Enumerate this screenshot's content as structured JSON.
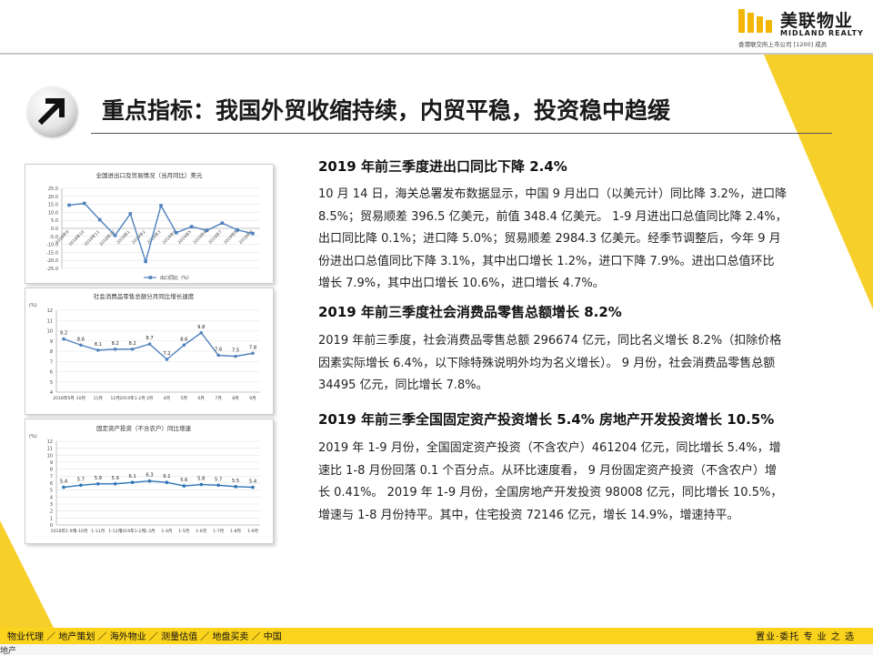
{
  "brand": {
    "name_cn": "美联物业",
    "name_en": "MIDLAND REALTY",
    "subtitle": "香港联交所上市公司 [1200] 成员"
  },
  "slide": {
    "title": "重点指标：我国外贸收缩持续，内贸平稳，投资稳中趋缓"
  },
  "sections": [
    {
      "heading": "2019 年前三季度进出口同比下降 2.4%",
      "lines": [
        "10 月 14 日，海关总署发布数据显示，中国 9 月出口（以美元计）同比降 3.2%，进口降",
        "8.5%；贸易顺差 396.5 亿美元，前值 348.4 亿美元。 1-9 月进出口总值同比降 2.4%，",
        "出口同比降 0.1%；进口降 5.0%；贸易顺差 2984.3 亿美元。经季节调整后，今年 9 月",
        "份进出口总值同比下降 3.1%，其中出口增长 1.2%，进口下降 7.9%。进出口总值环比",
        "增长 7.9%，其中出口增长 10.6%，进口增长 4.7%。"
      ]
    },
    {
      "heading": "2019 年前三季度社会消费品零售总额增长 8.2%",
      "lines": [
        "2019 年前三季度，社会消费品零售总额 296674 亿元，同比名义增长 8.2%（扣除价格",
        "因素实际增长 6.4%，以下除特殊说明外均为名义增长）。 9 月份，社会消费品零售总额",
        "34495 亿元，同比增长 7.8%。"
      ]
    },
    {
      "heading": "2019 年前三季全国固定资产投资增长 5.4%  房地产开发投资增长 10.5%",
      "lines": [
        "2019 年 1-9 月份，全国固定资产投资（不含农户）461204 亿元，同比增长 5.4%，增",
        "速比 1-8 月份回落 0.1 个百分点。从环比速度看， 9 月份固定资产投资（不含农户）增",
        "长 0.41%。 2019 年 1-9 月份，全国房地产开发投资 98008 亿元，同比增长 10.5%，",
        "增速与 1-8 月份持平。其中，住宅投资 72146 亿元，增长 14.9%，增速持平。"
      ]
    }
  ],
  "chart_data": [
    {
      "type": "line",
      "title": "全国进出口及贸易情况（当月同比）美元",
      "x": [
        "2018年9",
        "2018年10",
        "2018年11",
        "2018年12",
        "2019年1",
        "2019年2",
        "2019年3",
        "2019年4",
        "2019年5",
        "2019年6",
        "2019年7",
        "2019年8",
        "2019年9"
      ],
      "series": [
        {
          "name": "出口同比（%）",
          "values": [
            14.5,
            15.6,
            5.4,
            -4.4,
            9.1,
            -20.7,
            14.2,
            -2.7,
            1.1,
            -1.3,
            3.3,
            -1.0,
            -3.2
          ]
        }
      ],
      "yticks": [
        "25.0",
        "20.0",
        "15.0",
        "10.0",
        "5.0",
        "0.0",
        "-5.0",
        "-10.0",
        "-15.0",
        "-20.0",
        "-25.0"
      ],
      "ylim": [
        -25,
        25
      ],
      "color": "#4f81bd"
    },
    {
      "type": "line",
      "title": "社会消费品零售总额分月同比增长速度",
      "yunit": "(%)",
      "x": [
        "2018年9月",
        "10月",
        "11月",
        "12月",
        "2019年1-2月",
        "3月",
        "4月",
        "5月",
        "6月",
        "7月",
        "8月",
        "9月"
      ],
      "series": [
        {
          "values": [
            9.2,
            8.6,
            8.1,
            8.2,
            8.2,
            8.7,
            7.2,
            8.6,
            9.8,
            7.6,
            7.5,
            7.8
          ]
        }
      ],
      "yticks": [
        "12",
        "11",
        "10",
        "9",
        "8",
        "7",
        "6",
        "5",
        "4"
      ],
      "ylim": [
        4,
        12
      ],
      "color": "#4f81bd"
    },
    {
      "type": "line",
      "title": "固定资产投资（不含农户）同比增速",
      "yunit": "(%)",
      "x": [
        "2018年1-9月",
        "1-10月",
        "1-11月",
        "1-12月",
        "2019年1-2月",
        "1-3月",
        "1-4月",
        "1-5月",
        "1-6月",
        "1-7月",
        "1-8月",
        "1-9月"
      ],
      "series": [
        {
          "values": [
            5.4,
            5.7,
            5.9,
            5.9,
            6.1,
            6.3,
            6.1,
            5.6,
            5.8,
            5.7,
            5.5,
            5.4
          ]
        }
      ],
      "yticks": [
        "12",
        "11",
        "10",
        "9",
        "8",
        "7",
        "6",
        "5",
        "4",
        "3",
        "2",
        "1",
        "0"
      ],
      "ylim": [
        0,
        12
      ],
      "color": "#2e75b6"
    }
  ],
  "footer": {
    "nav": [
      "物业代理",
      "地产策划",
      "海外物业",
      "测量估值",
      "地盘买卖",
      "中国"
    ],
    "tagline": "置业·委托  专 业 之 选",
    "bottom_label": "地产"
  },
  "colors": {
    "accent_yellow": "#f7cf2a",
    "line_blue": "#4f81bd"
  }
}
